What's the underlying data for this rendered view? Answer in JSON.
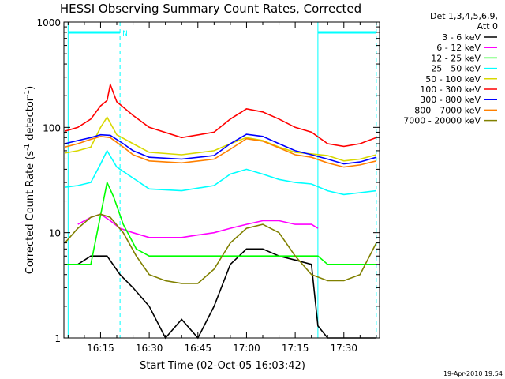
{
  "chart_data": {
    "type": "line",
    "title": "HESSI Observing Summary Count Rates, Corrected",
    "xlabel": "Start Time (02-Oct-05 16:03:42)",
    "ylabel": "Corrected Count Rate (s",
    "ylabel_sup1": "-1",
    "ylabel_mid": " detector",
    "ylabel_sup2": "-1",
    "ylabel_end": ")",
    "y_scale": "log",
    "ylim": [
      1,
      1000
    ],
    "xlim": [
      "16:03:42",
      "17:41:00"
    ],
    "x_ticks": [
      "16:15",
      "16:30",
      "16:45",
      "17:00",
      "17:15",
      "17:30"
    ],
    "y_ticks": [
      "1",
      "10",
      "100",
      "1000"
    ],
    "legend": {
      "header1": "Det 1,3,4,5,6,9,",
      "header2": "Att 0",
      "placement": "right"
    },
    "markers": [
      {
        "time": "16:05",
        "style": "solid",
        "color": "#00ffff"
      },
      {
        "time": "16:21",
        "style": "dashed",
        "color": "#00ffff"
      },
      {
        "time": "17:22",
        "style": "solid",
        "color": "#00ffff"
      },
      {
        "time": "17:40",
        "style": "dashed",
        "color": "#00ffff"
      }
    ],
    "top_bar_label": "N",
    "bar_color": "#00ffff",
    "series": [
      {
        "name": "3 - 6 keV",
        "color": "#000000",
        "x": [
          "16:08",
          "16:12",
          "16:17",
          "16:21",
          "16:25",
          "16:30",
          "16:35",
          "16:40",
          "16:45",
          "16:50",
          "16:55",
          "17:00",
          "17:05",
          "17:10",
          "17:15",
          "17:20",
          "17:22",
          "17:25",
          "17:30",
          "17:35",
          "17:40"
        ],
        "values": [
          5.0,
          6.0,
          6.0,
          4.0,
          3.0,
          2.0,
          1.0,
          1.5,
          1.0,
          2.0,
          5.0,
          7.0,
          7.0,
          6.0,
          5.5,
          5.0,
          1.3,
          1.0,
          1.0,
          1.0,
          1.0
        ]
      },
      {
        "name": "6 - 12 keV",
        "color": "#ff00ff",
        "x": [
          "16:08",
          "16:12",
          "16:15",
          "16:18",
          "16:21",
          "16:25",
          "16:30",
          "16:35",
          "16:40",
          "16:45",
          "16:50",
          "16:55",
          "17:00",
          "17:05",
          "17:10",
          "17:15",
          "17:20",
          "17:22"
        ],
        "values": [
          12,
          14,
          15,
          13,
          11,
          10,
          9,
          9,
          9,
          9.5,
          10,
          11,
          12,
          13,
          13,
          12,
          12,
          11
        ]
      },
      {
        "name": "12 - 25 keV",
        "color": "#00ff00",
        "x": [
          "16:04",
          "16:08",
          "16:12",
          "16:17",
          "16:19",
          "16:22",
          "16:26",
          "16:30",
          "16:40",
          "16:50",
          "17:00",
          "17:10",
          "17:20",
          "17:22",
          "17:25",
          "17:30",
          "17:35",
          "17:40"
        ],
        "values": [
          5,
          5,
          5,
          30,
          22,
          12,
          7,
          6,
          6,
          6,
          6,
          6,
          6,
          6,
          5,
          5,
          5,
          5
        ]
      },
      {
        "name": "25 - 50 keV",
        "color": "#00ffff",
        "x": [
          "16:04",
          "16:08",
          "16:12",
          "16:15",
          "16:17",
          "16:20",
          "16:25",
          "16:30",
          "16:40",
          "16:50",
          "16:55",
          "17:00",
          "17:05",
          "17:10",
          "17:15",
          "17:20",
          "17:25",
          "17:30",
          "17:35",
          "17:40"
        ],
        "values": [
          27,
          28,
          30,
          45,
          60,
          42,
          33,
          26,
          25,
          28,
          36,
          40,
          36,
          32,
          30,
          29,
          25,
          23,
          24,
          25
        ]
      },
      {
        "name": "50 - 100 keV",
        "color": "#d8d800",
        "x": [
          "16:04",
          "16:08",
          "16:12",
          "16:15",
          "16:17",
          "16:20",
          "16:25",
          "16:30",
          "16:40",
          "16:50",
          "16:55",
          "17:00",
          "17:05",
          "17:10",
          "17:15",
          "17:20",
          "17:25",
          "17:30",
          "17:35",
          "17:40"
        ],
        "values": [
          57,
          60,
          65,
          100,
          125,
          85,
          70,
          58,
          55,
          60,
          70,
          80,
          75,
          65,
          58,
          56,
          54,
          48,
          50,
          55
        ]
      },
      {
        "name": "100 - 300 keV",
        "color": "#ff0000",
        "x": [
          "16:04",
          "16:08",
          "16:12",
          "16:15",
          "16:17",
          "16:18",
          "16:20",
          "16:25",
          "16:30",
          "16:40",
          "16:50",
          "16:55",
          "17:00",
          "17:05",
          "17:10",
          "17:15",
          "17:20",
          "17:25",
          "17:30",
          "17:35",
          "17:40"
        ],
        "values": [
          92,
          100,
          120,
          160,
          180,
          255,
          175,
          130,
          100,
          80,
          90,
          120,
          150,
          140,
          120,
          100,
          90,
          70,
          66,
          70,
          80
        ]
      },
      {
        "name": "300 - 800 keV",
        "color": "#0000ff",
        "x": [
          "16:04",
          "16:08",
          "16:12",
          "16:15",
          "16:18",
          "16:22",
          "16:25",
          "16:30",
          "16:40",
          "16:50",
          "16:55",
          "17:00",
          "17:05",
          "17:10",
          "17:15",
          "17:20",
          "17:25",
          "17:30",
          "17:35",
          "17:40"
        ],
        "values": [
          70,
          75,
          80,
          85,
          84,
          70,
          60,
          52,
          50,
          54,
          70,
          86,
          82,
          70,
          60,
          55,
          50,
          45,
          47,
          52
        ]
      },
      {
        "name": "800 - 7000 keV",
        "color": "#ff8000",
        "x": [
          "16:04",
          "16:08",
          "16:12",
          "16:15",
          "16:18",
          "16:22",
          "16:25",
          "16:30",
          "16:40",
          "16:50",
          "16:55",
          "17:00",
          "17:05",
          "17:10",
          "17:15",
          "17:20",
          "17:25",
          "17:30",
          "17:35",
          "17:40"
        ],
        "values": [
          65,
          70,
          77,
          82,
          80,
          65,
          55,
          48,
          46,
          50,
          62,
          78,
          74,
          64,
          55,
          52,
          46,
          42,
          44,
          48
        ]
      },
      {
        "name": "7000 - 20000 keV",
        "color": "#808000",
        "x": [
          "16:04",
          "16:08",
          "16:12",
          "16:15",
          "16:18",
          "16:22",
          "16:26",
          "16:30",
          "16:35",
          "16:40",
          "16:45",
          "16:50",
          "16:55",
          "17:00",
          "17:05",
          "17:10",
          "17:15",
          "17:20",
          "17:25",
          "17:30",
          "17:35",
          "17:40"
        ],
        "values": [
          8,
          11,
          14,
          15,
          14,
          10,
          6,
          4,
          3.5,
          3.3,
          3.3,
          4.5,
          8,
          11,
          12,
          10,
          6,
          4,
          3.5,
          3.5,
          4,
          8
        ]
      }
    ]
  },
  "footer": {
    "timestamp": "19-Apr-2010 19:54"
  }
}
